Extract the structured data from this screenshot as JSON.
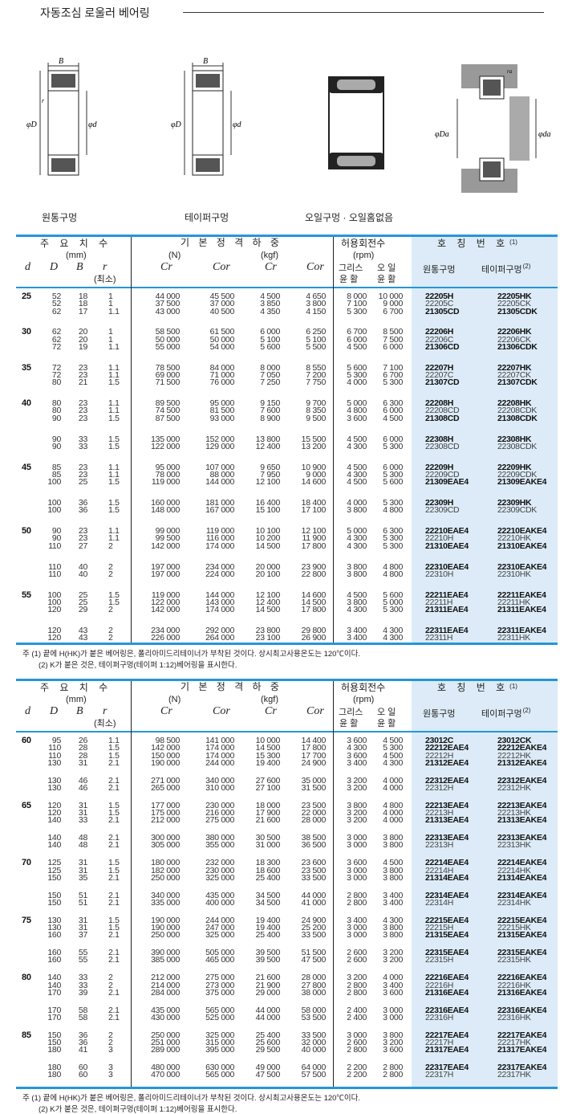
{
  "title": "자동조심 로울러 베어링",
  "figures": {
    "captions": [
      "원통구멍",
      "테이퍼구멍",
      "오일구멍 · 오일홈없음",
      ""
    ],
    "labels": {
      "B": "B",
      "r": "r",
      "D": "φD",
      "d": "φd",
      "Da": "φDa",
      "da": "φda",
      "ra": "ra"
    }
  },
  "header": {
    "dims": "주 요 치 수",
    "mm": "(mm)",
    "load": "기 본 정 격 하 중",
    "N": "(N)",
    "kgf": "(kgf)",
    "speed": "허용회전수",
    "rpm": "(rpm)",
    "desig": "호 칭 번 호",
    "desig_sup": "(1)",
    "d": "d",
    "D": "D",
    "B": "B",
    "r": "r",
    "rmin": "(최소)",
    "Cr": "Cr",
    "Cor": "Cor",
    "grease1": "그리스",
    "grease2": "윤 활",
    "oil1": "오 일",
    "oil2": "윤 활",
    "cyl": "원통구멍",
    "taper": "테이퍼구멍",
    "taper_sup": "(2)"
  },
  "notes": {
    "n1": "주  (1)  끝에 H(HK)가 붙은 베어링은, 폴리아미드리테이너가 부착된 것이다. 상시최고사용온도는 120℃이다.",
    "n2": "(2)  K가 붙은 것은, 테이퍼구멍(테이퍼 1:12)베어링을 표시한다."
  },
  "accent": "#2596d6",
  "designation_bg": "#dcebf7",
  "tables": [
    {
      "blocks": [
        {
          "d": "25",
          "rows": [
            [
              "52",
              "18",
              "1",
              "44 000",
              "45 500",
              "4 500",
              "4 650",
              "8 000",
              "10 000",
              "22205H",
              "22205HK"
            ],
            [
              "52",
              "18",
              "1",
              "37 500",
              "37 000",
              "3 850",
              "3 800",
              "7 100",
              "9 000",
              "22205C",
              "22205CK"
            ],
            [
              "62",
              "17",
              "1.1",
              "43 000",
              "40 500",
              "4 350",
              "4 150",
              "5 300",
              "6 700",
              "21305CD",
              "21305CDK"
            ]
          ]
        },
        {
          "d": "30",
          "rows": [
            [
              "62",
              "20",
              "1",
              "58 500",
              "61 500",
              "6 000",
              "6 250",
              "6 700",
              "8 500",
              "22206H",
              "22206HK"
            ],
            [
              "62",
              "20",
              "1",
              "50 000",
              "50 000",
              "5 100",
              "5 100",
              "6 000",
              "7 500",
              "22206C",
              "22206CK"
            ],
            [
              "72",
              "19",
              "1.1",
              "55 000",
              "54 000",
              "5 600",
              "5 500",
              "4 500",
              "6 000",
              "21306CD",
              "21306CDK"
            ]
          ]
        },
        {
          "d": "35",
          "rows": [
            [
              "72",
              "23",
              "1.1",
              "78 500",
              "84 000",
              "8 000",
              "8 550",
              "5 600",
              "7 100",
              "22207H",
              "22207HK"
            ],
            [
              "72",
              "23",
              "1.1",
              "69 000",
              "71 000",
              "7 050",
              "7 200",
              "5 300",
              "6 700",
              "22207C",
              "22207CK"
            ],
            [
              "80",
              "21",
              "1.5",
              "71 500",
              "76 000",
              "7 250",
              "7 750",
              "4 000",
              "5 300",
              "21307CD",
              "21307CDK"
            ]
          ]
        },
        {
          "d": "40",
          "rows": [
            [
              "80",
              "23",
              "1.1",
              "89 500",
              "95 000",
              "9 150",
              "9 700",
              "5 000",
              "6 300",
              "22208H",
              "22208HK"
            ],
            [
              "80",
              "23",
              "1.1",
              "74 500",
              "81 500",
              "7 600",
              "8 350",
              "4 800",
              "6 000",
              "22208CD",
              "22208CDK"
            ],
            [
              "90",
              "23",
              "1.5",
              "87 500",
              "93 000",
              "8 900",
              "9 500",
              "3 600",
              "4 500",
              "21308CD",
              "21308CDK"
            ]
          ]
        },
        {
          "d": "",
          "rows": [
            [
              "90",
              "33",
              "1.5",
              "135 000",
              "152 000",
              "13 800",
              "15 500",
              "4 500",
              "6 000",
              "22308H",
              "22308HK"
            ],
            [
              "90",
              "33",
              "1.5",
              "122 000",
              "129 000",
              "12 400",
              "13 200",
              "4 300",
              "5 300",
              "22308CD",
              "22308CDK"
            ]
          ]
        },
        {
          "d": "45",
          "rows": [
            [
              "85",
              "23",
              "1.1",
              "95 000",
              "107 000",
              "9 650",
              "10 900",
              "4 500",
              "6 000",
              "22209H",
              "22209HK"
            ],
            [
              "85",
              "23",
              "1.1",
              "78 000",
              "88 000",
              "7 950",
              "9 000",
              "4 300",
              "5 300",
              "22209CD",
              "22209CDK"
            ],
            [
              "100",
              "25",
              "1.5",
              "119 000",
              "144 000",
              "12 100",
              "14 600",
              "4 500",
              "5 600",
              "21309EAE4",
              "21309EAKE4"
            ]
          ]
        },
        {
          "d": "",
          "rows": [
            [
              "100",
              "36",
              "1.5",
              "160 000",
              "181 000",
              "16 400",
              "18 400",
              "4 000",
              "5 300",
              "22309H",
              "22309HK"
            ],
            [
              "100",
              "36",
              "1.5",
              "148 000",
              "167 000",
              "15 100",
              "17 100",
              "3 800",
              "4 800",
              "22309CD",
              "22309CDK"
            ]
          ]
        },
        {
          "d": "50",
          "rows": [
            [
              "90",
              "23",
              "1.1",
              "99 000",
              "119 000",
              "10 100",
              "12 100",
              "5 000",
              "6 300",
              "22210EAE4",
              "22210EAKE4"
            ],
            [
              "90",
              "23",
              "1.1",
              "99 500",
              "116 000",
              "10 200",
              "11 900",
              "4 300",
              "5 300",
              "22210H",
              "22210HK"
            ],
            [
              "110",
              "27",
              "2",
              "142 000",
              "174 000",
              "14 500",
              "17 800",
              "4 300",
              "5 300",
              "21310EAE4",
              "21310EAKE4"
            ]
          ]
        },
        {
          "d": "",
          "rows": [
            [
              "110",
              "40",
              "2",
              "197 000",
              "234 000",
              "20 000",
              "23 900",
              "3 800",
              "4 800",
              "22310EAE4",
              "22310EAKE4"
            ],
            [
              "110",
              "40",
              "2",
              "197 000",
              "224 000",
              "20 100",
              "22 800",
              "3 800",
              "4 800",
              "22310H",
              "22310HK"
            ]
          ]
        },
        {
          "d": "55",
          "rows": [
            [
              "100",
              "25",
              "1.5",
              "119 000",
              "144 000",
              "12 100",
              "14 600",
              "4 500",
              "5 600",
              "22211EAE4",
              "22211EAKE4"
            ],
            [
              "100",
              "25",
              "1.5",
              "122 000",
              "143 000",
              "12 400",
              "14 500",
              "3 800",
              "5 000",
              "22211H",
              "22211HK"
            ],
            [
              "120",
              "29",
              "2",
              "142 000",
              "174 000",
              "14 500",
              "17 800",
              "4 300",
              "5 300",
              "21311EAE4",
              "21311EAKE4"
            ]
          ]
        },
        {
          "d": "",
          "rows": [
            [
              "120",
              "43",
              "2",
              "234 000",
              "292 000",
              "23 800",
              "29 800",
              "3 400",
              "4 300",
              "22311EAE4",
              "22311EAKE4"
            ],
            [
              "120",
              "43",
              "2",
              "226 000",
              "264 000",
              "23 100",
              "26 900",
              "3 400",
              "4 300",
              "22311H",
              "22311HK"
            ]
          ]
        }
      ]
    },
    {
      "blocks": [
        {
          "d": "60",
          "rows": [
            [
              "95",
              "26",
              "1.1",
              "98 500",
              "141 000",
              "10 000",
              "14 400",
              "3 600",
              "4 500",
              "23012C",
              "23012CK"
            ],
            [
              "110",
              "28",
              "1.5",
              "142 000",
              "174 000",
              "14 500",
              "17 800",
              "4 300",
              "5 300",
              "22212EAE4",
              "22212EAKE4"
            ],
            [
              "110",
              "28",
              "1.5",
              "150 000",
              "174 000",
              "15 300",
              "17 700",
              "3 600",
              "4 500",
              "22212H",
              "22212HK"
            ],
            [
              "130",
              "31",
              "2.1",
              "190 000",
              "244 000",
              "19 400",
              "24 900",
              "3 400",
              "4 300",
              "21312EAE4",
              "21312EAKE4"
            ]
          ]
        },
        {
          "d": "",
          "rows": [
            [
              "130",
              "46",
              "2.1",
              "271 000",
              "340 000",
              "27 600",
              "35 000",
              "3 200",
              "4 000",
              "22312EAE4",
              "22312EAKE4"
            ],
            [
              "130",
              "46",
              "2.1",
              "265 000",
              "310 000",
              "27 100",
              "31 500",
              "3 200",
              "4 000",
              "22312H",
              "22312HK"
            ]
          ]
        },
        {
          "d": "65",
          "rows": [
            [
              "120",
              "31",
              "1.5",
              "177 000",
              "230 000",
              "18 000",
              "23 500",
              "3 800",
              "4 800",
              "22213EAE4",
              "22213EAKE4"
            ],
            [
              "120",
              "31",
              "1.5",
              "175 000",
              "216 000",
              "17 900",
              "22 000",
              "3 200",
              "4 000",
              "22213H",
              "22213HK"
            ],
            [
              "140",
              "33",
              "2.1",
              "212 000",
              "275 000",
              "21 600",
              "28 000",
              "3 200",
              "4 000",
              "21313EAE4",
              "21313EAKE4"
            ]
          ]
        },
        {
          "d": "",
          "rows": [
            [
              "140",
              "48",
              "2.1",
              "300 000",
              "380 000",
              "30 500",
              "38 500",
              "3 000",
              "3 800",
              "22313EAE4",
              "22313EAKE4"
            ],
            [
              "140",
              "48",
              "2.1",
              "305 000",
              "355 000",
              "31 000",
              "36 500",
              "3 000",
              "3 800",
              "22313H",
              "22313HK"
            ]
          ]
        },
        {
          "d": "70",
          "rows": [
            [
              "125",
              "31",
              "1.5",
              "180 000",
              "232 000",
              "18 300",
              "23 600",
              "3 600",
              "4 500",
              "22214EAE4",
              "22214EAKE4"
            ],
            [
              "125",
              "31",
              "1.5",
              "182 000",
              "230 000",
              "18 600",
              "23 500",
              "3 000",
              "3 800",
              "22214H",
              "22214HK"
            ],
            [
              "150",
              "35",
              "2.1",
              "250 000",
              "325 000",
              "25 400",
              "33 500",
              "3 000",
              "3 800",
              "21314EAE4",
              "21314EAKE4"
            ]
          ]
        },
        {
          "d": "",
          "rows": [
            [
              "150",
              "51",
              "2.1",
              "340 000",
              "435 000",
              "34 500",
              "44 000",
              "2 800",
              "3 400",
              "22314EAE4",
              "22314EAKE4"
            ],
            [
              "150",
              "51",
              "2.1",
              "335 000",
              "400 000",
              "34 500",
              "41 000",
              "2 800",
              "3 400",
              "22314H",
              "22314HK"
            ]
          ]
        },
        {
          "d": "75",
          "rows": [
            [
              "130",
              "31",
              "1.5",
              "190 000",
              "244 000",
              "19 400",
              "24 900",
              "3 400",
              "4 300",
              "22215EAE4",
              "22215EAKE4"
            ],
            [
              "130",
              "31",
              "1.5",
              "190 000",
              "247 000",
              "19 400",
              "25 200",
              "3 000",
              "3 800",
              "22215H",
              "22215HK"
            ],
            [
              "160",
              "37",
              "2.1",
              "250 000",
              "325 000",
              "25 400",
              "33 500",
              "3 000",
              "3 800",
              "21315EAE4",
              "21315EAKE4"
            ]
          ]
        },
        {
          "d": "",
          "rows": [
            [
              "160",
              "55",
              "2.1",
              "390 000",
              "505 000",
              "39 500",
              "51 500",
              "2 600",
              "3 200",
              "22315EAE4",
              "22315EAKE4"
            ],
            [
              "160",
              "55",
              "2.1",
              "385 000",
              "465 000",
              "39 500",
              "47 500",
              "2 600",
              "3 200",
              "22315H",
              "22315HK"
            ]
          ]
        },
        {
          "d": "80",
          "rows": [
            [
              "140",
              "33",
              "2",
              "212 000",
              "275 000",
              "21 600",
              "28 000",
              "3 200",
              "4 000",
              "22216EAE4",
              "22216EAKE4"
            ],
            [
              "140",
              "33",
              "2",
              "214 000",
              "273 000",
              "21 900",
              "27 800",
              "2 800",
              "3 400",
              "22216H",
              "22216HK"
            ],
            [
              "170",
              "39",
              "2.1",
              "284 000",
              "375 000",
              "29 000",
              "38 000",
              "2 800",
              "3 600",
              "21316EAE4",
              "21316EAKE4"
            ]
          ]
        },
        {
          "d": "",
          "rows": [
            [
              "170",
              "58",
              "2.1",
              "435 000",
              "565 000",
              "44 000",
              "58 000",
              "2 400",
              "3 000",
              "22316EAE4",
              "22316EAKE4"
            ],
            [
              "170",
              "58",
              "2.1",
              "430 000",
              "525 000",
              "44 000",
              "53 500",
              "2 400",
              "3 000",
              "22316H",
              "22316HK"
            ]
          ]
        },
        {
          "d": "85",
          "rows": [
            [
              "150",
              "36",
              "2",
              "250 000",
              "325 000",
              "25 400",
              "33 500",
              "3 000",
              "3 800",
              "22217EAE4",
              "22217EAKE4"
            ],
            [
              "150",
              "36",
              "2",
              "251 000",
              "315 000",
              "25 600",
              "32 000",
              "2 600",
              "3 200",
              "22217H",
              "22217HK"
            ],
            [
              "180",
              "41",
              "3",
              "289 000",
              "395 000",
              "29 500",
              "40 000",
              "2 800",
              "3 600",
              "21317EAE4",
              "21317EAKE4"
            ]
          ]
        },
        {
          "d": "",
          "rows": [
            [
              "180",
              "60",
              "3",
              "480 000",
              "630 000",
              "49 000",
              "64 000",
              "2 200",
              "2 800",
              "22317EAE4",
              "22317EAKE4"
            ],
            [
              "180",
              "60",
              "3",
              "470 000",
              "565 000",
              "47 500",
              "57 500",
              "2 200",
              "2 800",
              "22317H",
              "22317HK"
            ]
          ]
        }
      ]
    }
  ]
}
